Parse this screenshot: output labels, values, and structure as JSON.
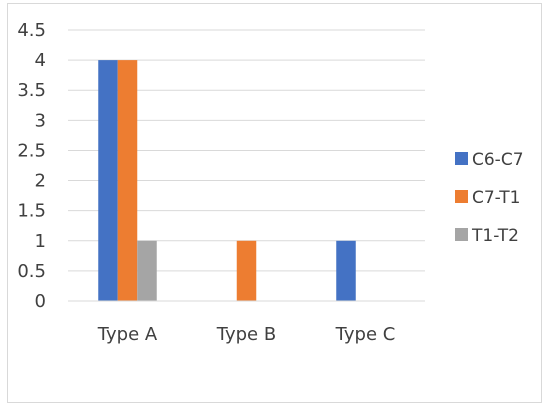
{
  "chart_data": {
    "type": "bar",
    "title": "",
    "xlabel": "",
    "ylabel": "",
    "categories": [
      "Type A",
      "Type B",
      "Type C"
    ],
    "series": [
      {
        "name": "C6-C7",
        "color": "#4472c4",
        "values": [
          4,
          0,
          1
        ]
      },
      {
        "name": "C7-T1",
        "color": "#ed7d31",
        "values": [
          4,
          1,
          0
        ]
      },
      {
        "name": "T1-T2",
        "color": "#a5a5a5",
        "values": [
          1,
          0,
          0
        ]
      }
    ],
    "ylim": [
      0,
      4.5
    ],
    "yticks": [
      "0",
      "0.5",
      "1",
      "1.5",
      "2",
      "2.5",
      "3",
      "3.5",
      "4",
      "4.5"
    ],
    "grid": true,
    "legend_position": "right"
  }
}
